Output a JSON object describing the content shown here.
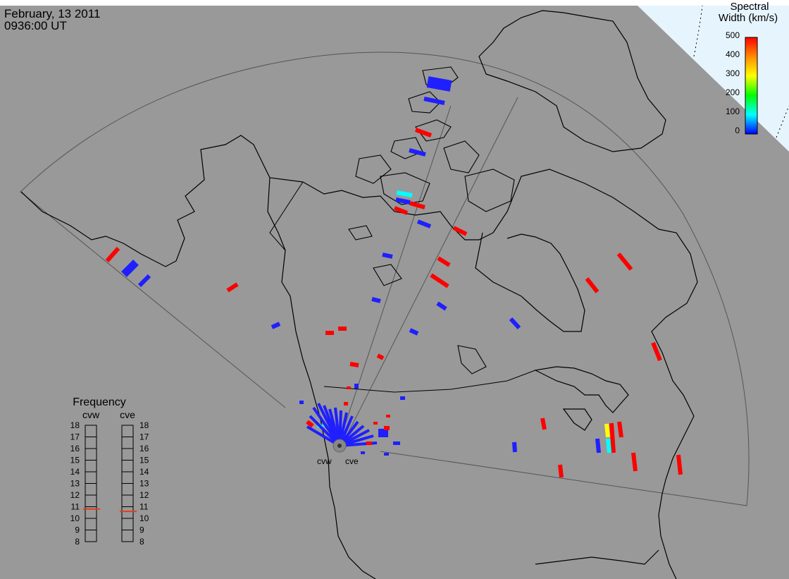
{
  "header": {
    "date": "February, 13 2011",
    "time": "0936:00 UT"
  },
  "legend": {
    "title_line1": "Spectral",
    "title_line2": "Width (km/s)",
    "ticks": [
      "500",
      "400",
      "300",
      "200",
      "100",
      "0"
    ],
    "colors": [
      "#ff0000",
      "#ff8c00",
      "#ffff00",
      "#00ff00",
      "#00ffff",
      "#0000ff"
    ]
  },
  "radars": {
    "west": "cvw",
    "east": "cve"
  },
  "frequency": {
    "title": "Frequency",
    "left_label": "cvw",
    "right_label": "cve",
    "ticks": [
      "18",
      "17",
      "16",
      "15",
      "14",
      "13",
      "12",
      "11",
      "10",
      "9",
      "8"
    ],
    "cvw_mhz": 10.8,
    "cve_mhz": 10.6,
    "marker_color": "#e0401a"
  },
  "colors": {
    "map_background": "#999999",
    "sky": "#e6f4fd",
    "high_width": "#ff0000",
    "low_width": "#1f1fff"
  }
}
